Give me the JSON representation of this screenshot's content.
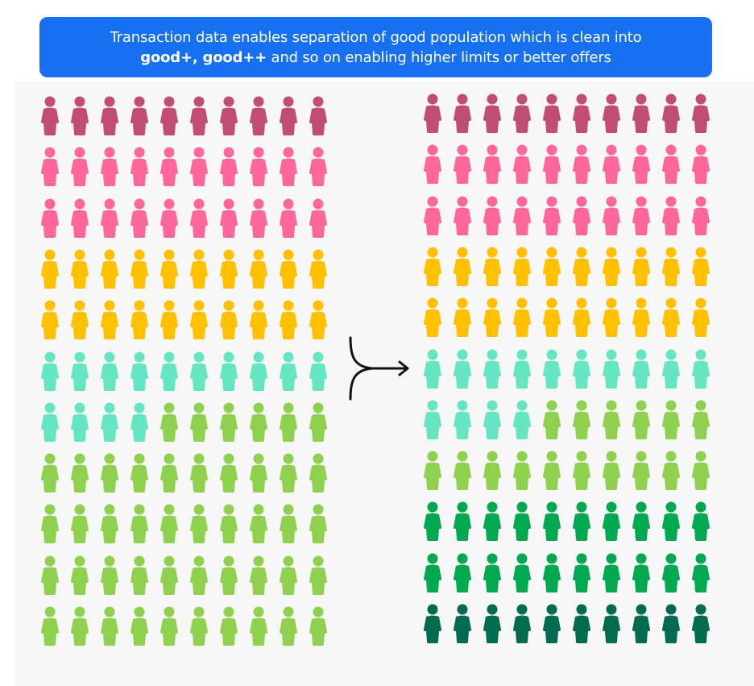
{
  "header": {
    "line1": "Transaction data enables separation of good population which is clean into",
    "line2_bold": "good+, good++",
    "line2_rest": " and so on enabling higher limits or better offers"
  },
  "colors": {
    "maroon": "#c14c74",
    "pink": "#ff6699",
    "yellow": "#ffc000",
    "aqua": "#66e5c3",
    "lime": "#8fd14f",
    "green": "#00a84f",
    "darkgreen": "#006b4e",
    "banner": "#1670f0"
  },
  "icons": {
    "person": "person-icon",
    "arrow": "split-arrow-icon"
  },
  "population_before": {
    "rows": 11,
    "columns": 10,
    "segments": [
      {
        "color": "maroon",
        "count": 10
      },
      {
        "color": "pink",
        "count": 20
      },
      {
        "color": "yellow",
        "count": 20
      },
      {
        "color": "aqua",
        "count": 14
      },
      {
        "color": "lime",
        "count": 46
      }
    ]
  },
  "population_after": {
    "rows": 11,
    "columns": 10,
    "segments": [
      {
        "color": "maroon",
        "count": 10
      },
      {
        "color": "pink",
        "count": 20
      },
      {
        "color": "yellow",
        "count": 20
      },
      {
        "color": "aqua",
        "count": 14
      },
      {
        "color": "lime",
        "count": 16
      },
      {
        "color": "green",
        "count": 20
      },
      {
        "color": "darkgreen",
        "count": 10
      }
    ]
  }
}
